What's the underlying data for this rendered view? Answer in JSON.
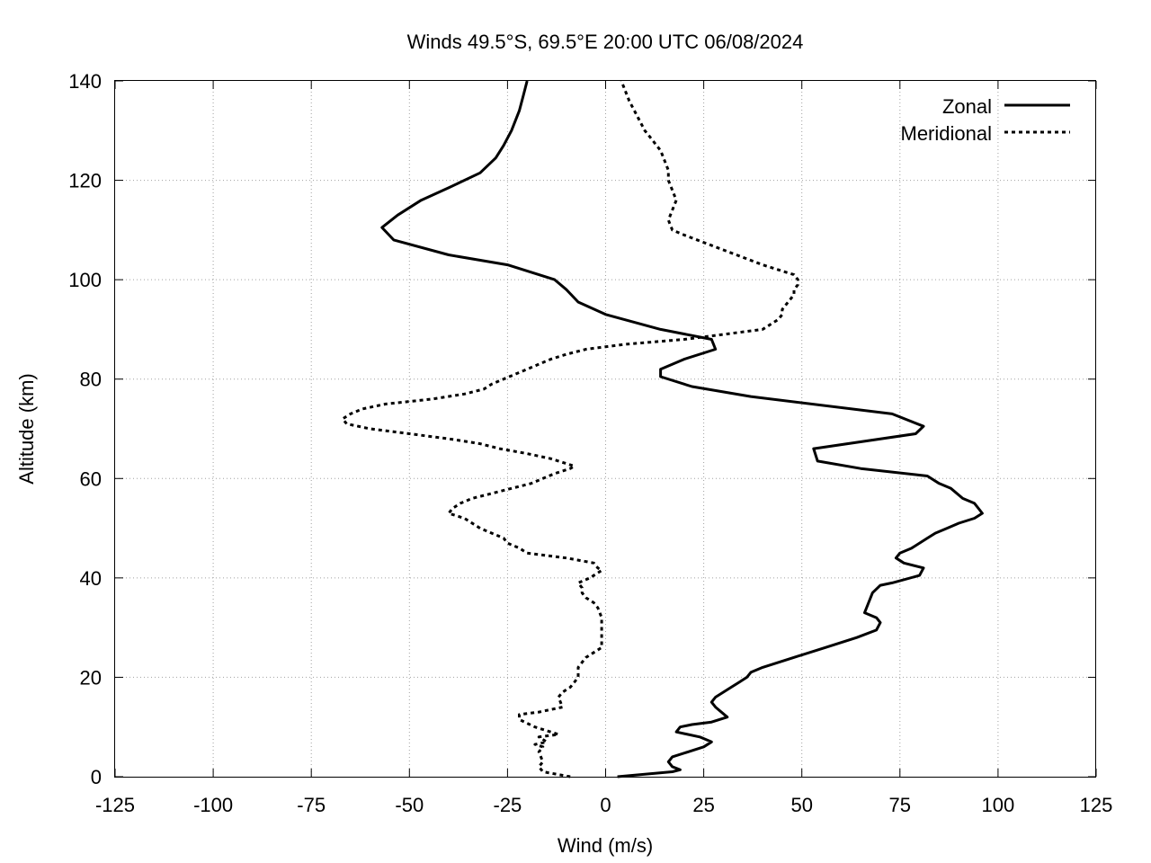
{
  "chart_data": {
    "type": "line",
    "title": "Winds 49.5°S, 69.5°E 20:00 UTC 06/08/2024",
    "xlabel": "Wind (m/s)",
    "ylabel": "Altitude (km)",
    "xlim": [
      -125,
      125
    ],
    "ylim": [
      0,
      140
    ],
    "x_ticks": [
      "-125",
      "-100",
      "-75",
      "-50",
      "-25",
      "0",
      "25",
      "50",
      "75",
      "100",
      "125"
    ],
    "y_ticks": [
      "0",
      "20",
      "40",
      "60",
      "80",
      "100",
      "120",
      "140"
    ],
    "grid": true,
    "legend_position": "top-right",
    "series": [
      {
        "name": "Zonal",
        "style": "solid",
        "color": "#000000",
        "points": [
          [
            3,
            0
          ],
          [
            17,
            1
          ],
          [
            19,
            1.4
          ],
          [
            17,
            2
          ],
          [
            16,
            3
          ],
          [
            17,
            4
          ],
          [
            21,
            5
          ],
          [
            25,
            6
          ],
          [
            27,
            7
          ],
          [
            24,
            8
          ],
          [
            18,
            9
          ],
          [
            19,
            10
          ],
          [
            22,
            10.5
          ],
          [
            27,
            11
          ],
          [
            31,
            12
          ],
          [
            28,
            14
          ],
          [
            27,
            15
          ],
          [
            28,
            16
          ],
          [
            32,
            18
          ],
          [
            34,
            19
          ],
          [
            36,
            20
          ],
          [
            37,
            21
          ],
          [
            40,
            22
          ],
          [
            48,
            24
          ],
          [
            56,
            26
          ],
          [
            64,
            28
          ],
          [
            69,
            29.5
          ],
          [
            70,
            31
          ],
          [
            69,
            32
          ],
          [
            66,
            33
          ],
          [
            67,
            35
          ],
          [
            68,
            37
          ],
          [
            70,
            38.5
          ],
          [
            73,
            39
          ],
          [
            80,
            40.5
          ],
          [
            81,
            42
          ],
          [
            76,
            43
          ],
          [
            74,
            44
          ],
          [
            75,
            45
          ],
          [
            78,
            46
          ],
          [
            82,
            48
          ],
          [
            84,
            49
          ],
          [
            87,
            50
          ],
          [
            90,
            51
          ],
          [
            94,
            52
          ],
          [
            96,
            53
          ],
          [
            95,
            54
          ],
          [
            94,
            55
          ],
          [
            91,
            56
          ],
          [
            88,
            58
          ],
          [
            85,
            59
          ],
          [
            82,
            60.5
          ],
          [
            65,
            62
          ],
          [
            54,
            63.5
          ],
          [
            53,
            66
          ],
          [
            79,
            69
          ],
          [
            81,
            70.5
          ],
          [
            73,
            73
          ],
          [
            37,
            76.5
          ],
          [
            22,
            78.5
          ],
          [
            14,
            80.5
          ],
          [
            14,
            82
          ],
          [
            20,
            84
          ],
          [
            28,
            86
          ],
          [
            27,
            88
          ],
          [
            14,
            90
          ],
          [
            0,
            93
          ],
          [
            -7,
            95.5
          ],
          [
            -10,
            98
          ],
          [
            -13,
            100
          ],
          [
            -25,
            103
          ],
          [
            -40,
            105
          ],
          [
            -54,
            108
          ],
          [
            -57,
            110.5
          ],
          [
            -53,
            113
          ],
          [
            -47,
            116
          ],
          [
            -40,
            118.5
          ],
          [
            -32,
            121.5
          ],
          [
            -28,
            124.5
          ],
          [
            -26,
            127
          ],
          [
            -24,
            130
          ],
          [
            -22,
            134
          ],
          [
            -21,
            137
          ],
          [
            -20,
            140
          ]
        ]
      },
      {
        "name": "Meridional",
        "style": "dashed",
        "color": "#000000",
        "points": [
          [
            -9,
            0
          ],
          [
            -16,
            1
          ],
          [
            -17,
            2
          ],
          [
            -16,
            3
          ],
          [
            -17,
            5
          ],
          [
            -16,
            6
          ],
          [
            -18,
            6.5
          ],
          [
            -15,
            7
          ],
          [
            -17,
            8
          ],
          [
            -12,
            8.5
          ],
          [
            -14,
            9
          ],
          [
            -18,
            10
          ],
          [
            -22,
            11.5
          ],
          [
            -22,
            12.5
          ],
          [
            -17,
            13
          ],
          [
            -11,
            14
          ],
          [
            -12,
            16
          ],
          [
            -11,
            17
          ],
          [
            -9,
            18
          ],
          [
            -8,
            19
          ],
          [
            -7,
            20
          ],
          [
            -7,
            21
          ],
          [
            -7,
            22
          ],
          [
            -6,
            23
          ],
          [
            -5,
            24
          ],
          [
            -3,
            25
          ],
          [
            -1,
            26
          ],
          [
            -1,
            27
          ],
          [
            -1,
            28
          ],
          [
            -1,
            29
          ],
          [
            -1,
            30
          ],
          [
            -1,
            31
          ],
          [
            -1,
            32
          ],
          [
            -2,
            34
          ],
          [
            -3,
            35
          ],
          [
            -5,
            36
          ],
          [
            -6,
            37
          ],
          [
            -6,
            38
          ],
          [
            -7,
            39
          ],
          [
            -4,
            40
          ],
          [
            -2,
            41
          ],
          [
            -1,
            41.5
          ],
          [
            -2,
            42
          ],
          [
            -3,
            43
          ],
          [
            -10,
            44
          ],
          [
            -20,
            45
          ],
          [
            -22,
            46
          ],
          [
            -25,
            47
          ],
          [
            -26,
            48
          ],
          [
            -29,
            49
          ],
          [
            -32,
            50
          ],
          [
            -36,
            52
          ],
          [
            -40,
            53
          ],
          [
            -39,
            54
          ],
          [
            -37,
            55
          ],
          [
            -34,
            56
          ],
          [
            -29,
            57
          ],
          [
            -24,
            58
          ],
          [
            -19,
            59
          ],
          [
            -16,
            60
          ],
          [
            -13,
            61
          ],
          [
            -9,
            62
          ],
          [
            -8,
            62.5
          ],
          [
            -10,
            63
          ],
          [
            -14,
            64
          ],
          [
            -20,
            65
          ],
          [
            -27,
            66
          ],
          [
            -32,
            67
          ],
          [
            -40,
            68
          ],
          [
            -50,
            69
          ],
          [
            -60,
            70
          ],
          [
            -66,
            71
          ],
          [
            -67,
            72
          ],
          [
            -65,
            73
          ],
          [
            -62,
            74
          ],
          [
            -56,
            75
          ],
          [
            -44,
            76
          ],
          [
            -36,
            77
          ],
          [
            -31,
            78
          ],
          [
            -29,
            79
          ],
          [
            -26,
            80
          ],
          [
            -23,
            81
          ],
          [
            -20,
            82
          ],
          [
            -17,
            83
          ],
          [
            -14,
            84
          ],
          [
            -10,
            85
          ],
          [
            -5,
            86
          ],
          [
            5,
            87
          ],
          [
            20,
            88
          ],
          [
            30,
            89
          ],
          [
            40,
            90
          ],
          [
            42,
            91
          ],
          [
            44,
            92
          ],
          [
            45,
            93
          ],
          [
            45,
            94
          ],
          [
            46,
            95
          ],
          [
            47,
            96
          ],
          [
            48,
            97
          ],
          [
            48,
            98
          ],
          [
            49,
            99
          ],
          [
            49,
            100
          ],
          [
            48,
            101
          ],
          [
            40,
            103
          ],
          [
            30,
            106
          ],
          [
            20,
            109
          ],
          [
            17,
            110
          ],
          [
            16,
            112
          ],
          [
            17,
            114
          ],
          [
            18,
            116
          ],
          [
            17,
            118
          ],
          [
            16,
            120
          ],
          [
            16,
            122
          ],
          [
            15,
            124
          ],
          [
            14,
            126
          ],
          [
            12,
            128
          ],
          [
            10,
            130
          ],
          [
            8,
            133
          ],
          [
            6,
            136
          ],
          [
            4,
            140
          ]
        ]
      }
    ]
  }
}
